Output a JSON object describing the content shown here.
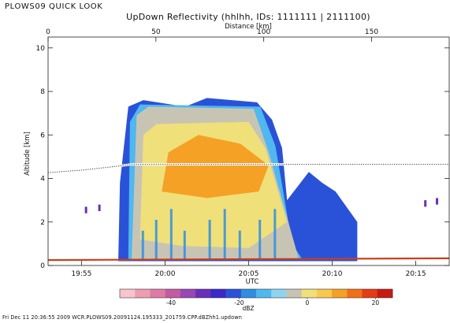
{
  "header": {
    "program_label": "PLOWS09 QUICK LOOK",
    "title": "UpDown Reflectivity (hhlhh, IDs: 1111111 | 2111100)"
  },
  "footer": {
    "text": "Fri Dec 11 20:36:55 2009 WCR.PLOWS09.20091124.195333_201759.CPP.dBZhh1.updown"
  },
  "chart_data": {
    "type": "heatmap",
    "title": "UpDown Reflectivity (hhlhh, IDs: 1111111 | 2111100)",
    "xlabel": "UTC",
    "ylabel": "Altitude [km]",
    "x2label": "Distance [km]",
    "xlim": [
      0,
      24.0
    ],
    "x_unit_note": "minutes after 19:53 UTC",
    "x_ticks": [
      {
        "value": 2.0,
        "label": "19:55"
      },
      {
        "value": 7.0,
        "label": "20:00"
      },
      {
        "value": 12.0,
        "label": "20:05"
      },
      {
        "value": 17.0,
        "label": "20:10"
      },
      {
        "value": 22.0,
        "label": "20:15"
      }
    ],
    "x2lim": [
      0,
      186
    ],
    "x2_ticks": [
      0,
      50,
      100,
      150
    ],
    "ylim": [
      0,
      10.5
    ],
    "y_ticks": [
      0,
      2,
      4,
      6,
      8,
      10
    ],
    "aircraft_altitude_km": [
      {
        "x": 0.0,
        "y": 4.27
      },
      {
        "x": 2.0,
        "y": 4.38
      },
      {
        "x": 4.0,
        "y": 4.55
      },
      {
        "x": 5.0,
        "y": 4.65
      },
      {
        "x": 24.0,
        "y": 4.65
      }
    ],
    "surface_km": [
      {
        "x": 0.0,
        "y": 0.25
      },
      {
        "x": 24.0,
        "y": 0.33
      }
    ],
    "echo_regions": [
      {
        "level_dbz": -25,
        "x_start": 4.2,
        "x_end": 18.5,
        "cloud_top_km": 7.6
      },
      {
        "level_dbz": 0,
        "x_start": 5.0,
        "x_end": 15.0,
        "cloud_top_km": 7.3
      },
      {
        "level_dbz": 10,
        "x_start": 5.5,
        "x_end": 14.3,
        "cloud_top_km": 6.5
      },
      {
        "level_dbz": 15,
        "x_start": 6.8,
        "x_end": 13.2,
        "core_km": [
          3.4,
          6.0
        ]
      }
    ],
    "colorbar": {
      "label": "dBZ",
      "range": [
        -55,
        25
      ],
      "ticks": [
        -40,
        -20,
        0,
        20
      ],
      "colors": [
        "#f7c6cc",
        "#ee9eb2",
        "#dd7aa5",
        "#c45aa1",
        "#9a46b5",
        "#6a2fb9",
        "#3a27c8",
        "#2a52d8",
        "#2f8ee0",
        "#4fb8ee",
        "#8fd4ef",
        "#c8c4b4",
        "#efe07a",
        "#f9c84c",
        "#f5a125",
        "#f07016",
        "#e23d16",
        "#c81a14"
      ]
    }
  }
}
